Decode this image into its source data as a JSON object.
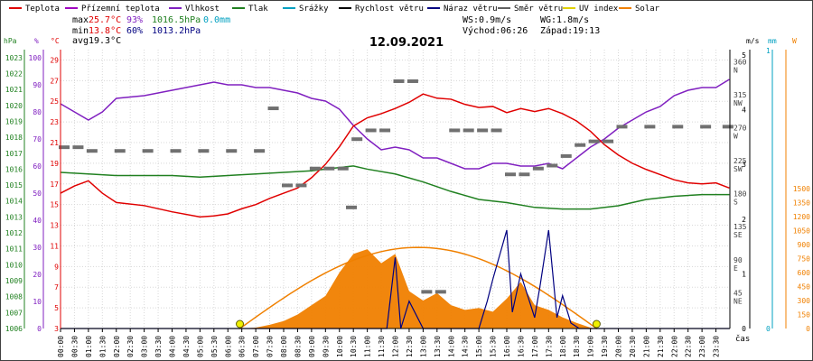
{
  "chart_data": {
    "type": "line",
    "title": "12.09.2021",
    "legend": [
      {
        "name": "Teplota",
        "color": "#e00000"
      },
      {
        "name": "Přízemní teplota",
        "color": "#a000c0"
      },
      {
        "name": "Vlhkost",
        "color": "#8020c0"
      },
      {
        "name": "Tlak",
        "color": "#208020"
      },
      {
        "name": "Srážky",
        "color": "#00a0c0"
      },
      {
        "name": "Rychlost větru",
        "color": "#000000"
      },
      {
        "name": "Náraz větru",
        "color": "#000080"
      },
      {
        "name": "Směr větru",
        "color": "#606060"
      },
      {
        "name": "UV index",
        "color": "#e0d000"
      },
      {
        "name": "Solar",
        "color": "#f08000"
      }
    ],
    "stats": {
      "max_label": "max",
      "max_temp": "25.7°C",
      "max_hum": "93%",
      "max_press": "1016.5hPa",
      "max_rain": "0.0mm",
      "min_label": "min",
      "min_temp": "13.8°C",
      "min_hum": "60%",
      "min_press": "1013.2hPa",
      "avg_label": "avg",
      "avg_temp": "19.3°C",
      "ws": "WS:0.9m/s",
      "wg": "WG:1.8m/s",
      "sunrise": "Východ:06:26",
      "sunset": "Západ:19:13"
    },
    "axis_units": {
      "hpa": "hPa",
      "pct": "%",
      "degc": "°C",
      "ms": "m/s",
      "mm": "mm",
      "w": "W",
      "time": "čas"
    },
    "axes": {
      "pressure": {
        "ticks": [
          1006,
          1007,
          1008,
          1009,
          1010,
          1011,
          1012,
          1013,
          1014,
          1015,
          1016,
          1017,
          1018,
          1019,
          1020,
          1021,
          1022,
          1023
        ]
      },
      "humidity": {
        "ticks": [
          0,
          10,
          20,
          30,
          40,
          50,
          60,
          70,
          80,
          90,
          100
        ]
      },
      "temperature": {
        "ticks": [
          3,
          5,
          7,
          9,
          11,
          13,
          15,
          17,
          19,
          21,
          23,
          25,
          27,
          29
        ]
      },
      "wind_dir": {
        "ticks": [
          {
            "deg": "45",
            "dir": "NE"
          },
          {
            "deg": "90",
            "dir": "E"
          },
          {
            "deg": "135",
            "dir": "SE"
          },
          {
            "deg": "180",
            "dir": "S"
          },
          {
            "deg": "225",
            "dir": "SW"
          },
          {
            "deg": "270",
            "dir": "W"
          },
          {
            "deg": "315",
            "dir": "NW"
          },
          {
            "deg": "360",
            "dir": "N"
          }
        ]
      },
      "wind_speed": {
        "ticks": [
          0,
          1,
          2,
          3,
          4,
          5
        ]
      },
      "rain": {
        "ticks": [
          0,
          1
        ]
      },
      "solar": {
        "ticks": [
          0,
          150,
          300,
          450,
          600,
          750,
          900,
          1050,
          1200,
          1350,
          1500
        ]
      },
      "time": {
        "ticks": [
          "00:00",
          "00:30",
          "01:00",
          "01:30",
          "02:00",
          "02:30",
          "03:00",
          "03:30",
          "04:00",
          "04:30",
          "05:00",
          "05:30",
          "06:00",
          "06:30",
          "07:00",
          "07:30",
          "08:00",
          "08:30",
          "09:00",
          "09:30",
          "10:00",
          "10:30",
          "11:00",
          "11:30",
          "12:00",
          "12:30",
          "13:00",
          "13:30",
          "14:00",
          "14:30",
          "15:00",
          "15:30",
          "16:00",
          "16:30",
          "17:00",
          "17:30",
          "18:00",
          "18:30",
          "19:00",
          "19:30",
          "20:00",
          "20:30",
          "21:00",
          "21:30",
          "22:00",
          "22:30",
          "23:00",
          "23:30"
        ]
      }
    },
    "series": {
      "temperature_c": {
        "x": [
          0,
          0.5,
          1,
          1.5,
          2,
          3,
          4,
          5,
          5.5,
          6,
          6.5,
          7,
          7.5,
          8,
          8.5,
          9,
          9.5,
          10,
          10.5,
          11,
          11.5,
          12,
          12.5,
          13,
          13.5,
          14,
          14.5,
          15,
          15.5,
          16,
          16.5,
          17,
          17.5,
          18,
          18.5,
          19,
          19.5,
          20,
          20.5,
          21,
          21.5,
          22,
          22.5,
          23,
          23.5,
          23.98
        ],
        "y": [
          16.1,
          16.8,
          17.3,
          16.1,
          15.2,
          14.9,
          14.3,
          13.8,
          13.9,
          14.1,
          14.6,
          15.0,
          15.6,
          16.1,
          16.6,
          17.6,
          18.9,
          20.6,
          22.6,
          23.4,
          23.8,
          24.3,
          24.9,
          25.7,
          25.3,
          25.2,
          24.7,
          24.4,
          24.5,
          23.9,
          24.3,
          24.0,
          24.3,
          23.8,
          23.1,
          22.1,
          20.8,
          19.8,
          19.0,
          18.4,
          17.9,
          17.4,
          17.1,
          17.0,
          17.1,
          16.6
        ]
      },
      "humidity_pct": {
        "x": [
          0,
          0.5,
          1,
          1.5,
          2,
          3,
          4,
          5,
          5.5,
          6,
          6.5,
          7,
          7.5,
          8,
          8.5,
          9,
          9.5,
          10,
          10.5,
          11,
          11.5,
          12,
          12.5,
          13,
          13.5,
          14,
          14.5,
          15,
          15.5,
          16,
          16.5,
          17,
          17.5,
          18,
          18.5,
          19,
          19.5,
          20,
          20.5,
          21,
          21.5,
          22,
          22.5,
          23,
          23.5,
          23.98
        ],
        "y": [
          83,
          80,
          77,
          80,
          85,
          86,
          88,
          90,
          91,
          90,
          90,
          89,
          89,
          88,
          87,
          85,
          84,
          81,
          75,
          70,
          66,
          67,
          66,
          63,
          63,
          61,
          59,
          59,
          61,
          61,
          60,
          60,
          61,
          59,
          63,
          67,
          70,
          74,
          77,
          80,
          82,
          86,
          88,
          89,
          89,
          92
        ]
      },
      "pressure_hpa": {
        "x": [
          0,
          1,
          2,
          3,
          4,
          5,
          6,
          7,
          8,
          9,
          10,
          10.5,
          11,
          12,
          13,
          14,
          15,
          16,
          17,
          18,
          19,
          20,
          21,
          22,
          23,
          23.98
        ],
        "y": [
          1015.8,
          1015.7,
          1015.6,
          1015.6,
          1015.6,
          1015.5,
          1015.6,
          1015.7,
          1015.8,
          1015.9,
          1016.1,
          1016.2,
          1016.0,
          1015.7,
          1015.2,
          1014.6,
          1014.1,
          1013.9,
          1013.6,
          1013.5,
          1013.5,
          1013.7,
          1014.1,
          1014.3,
          1014.4,
          1014.4
        ]
      },
      "wind_dir_deg": {
        "x": [
          0,
          0.5,
          1,
          2,
          3,
          4,
          5,
          6,
          7,
          7.5,
          8,
          8.5,
          9,
          9.5,
          10,
          10.3,
          10.5,
          11,
          11.5,
          12,
          12.5,
          13,
          13.5,
          14,
          14.5,
          15,
          15.5,
          16,
          16.5,
          17,
          17.5,
          18,
          18.5,
          19,
          19.5,
          20,
          21,
          22,
          23,
          23.8
        ],
        "y": [
          247,
          247,
          242,
          242,
          242,
          242,
          242,
          242,
          242,
          300,
          195,
          195,
          218,
          218,
          218,
          165,
          258,
          270,
          270,
          337,
          337,
          50,
          50,
          270,
          270,
          270,
          270,
          210,
          210,
          218,
          222,
          235,
          250,
          255,
          255,
          275,
          275,
          275,
          275,
          275
        ]
      },
      "wind_gust_ms": {
        "x": [
          0,
          11.5,
          11.7,
          12,
          12.2,
          12.5,
          13,
          14,
          15,
          15.3,
          15.5,
          16,
          16.2,
          16.5,
          17,
          17.2,
          17.5,
          17.8,
          18,
          18.3,
          18.6,
          19,
          23.98
        ],
        "y": [
          0,
          0,
          0,
          1.3,
          0,
          0.5,
          0,
          0,
          0,
          0.5,
          0.9,
          1.8,
          0.3,
          1.0,
          0.2,
          0.8,
          1.8,
          0.2,
          0.6,
          0.1,
          0,
          0,
          0
        ]
      },
      "solar_wm2": {
        "x": [
          6.5,
          7,
          7.5,
          8,
          8.5,
          9,
          9.5,
          10,
          10.5,
          11,
          11.5,
          12,
          12.5,
          13,
          13.5,
          14,
          14.5,
          15,
          15.5,
          16,
          16.5,
          17,
          17.5,
          18,
          18.5,
          19,
          19.2
        ],
        "y": [
          0,
          10,
          40,
          80,
          150,
          250,
          350,
          600,
          800,
          850,
          700,
          800,
          400,
          300,
          380,
          250,
          200,
          220,
          180,
          320,
          500,
          250,
          200,
          120,
          60,
          10,
          0
        ]
      },
      "uv_index": {
        "x": [
          6.43,
          19.22
        ],
        "y": [
          0,
          0
        ]
      }
    }
  }
}
